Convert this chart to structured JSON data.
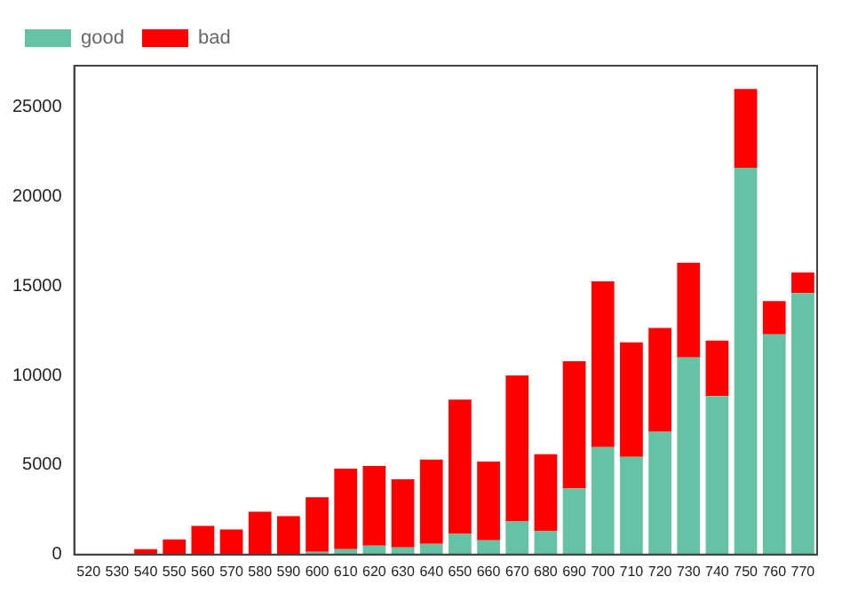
{
  "chart_data": {
    "type": "bar",
    "stacked": true,
    "categories": [
      "520",
      "530",
      "540",
      "550",
      "560",
      "570",
      "580",
      "590",
      "600",
      "610",
      "620",
      "630",
      "640",
      "650",
      "660",
      "670",
      "680",
      "690",
      "700",
      "710",
      "720",
      "730",
      "740",
      "750",
      "760",
      "770"
    ],
    "series": [
      {
        "name": "good",
        "color": "#66c2a5",
        "values": [
          0,
          0,
          0,
          0,
          0,
          null,
          null,
          null,
          150,
          300,
          500,
          400,
          600,
          1150,
          800,
          1850,
          1300,
          3700,
          6000,
          5450,
          6850,
          11000,
          8850,
          21600,
          12300,
          14600
        ]
      },
      {
        "name": "bad",
        "color": "#ff0000",
        "values": [
          0,
          0,
          300,
          850,
          1600,
          1400,
          2400,
          2150,
          3050,
          4500,
          4450,
          3800,
          4700,
          7500,
          4400,
          8150,
          4300,
          7100,
          9250,
          6400,
          5800,
          5300,
          3100,
          4400,
          1850,
          1150
        ]
      }
    ],
    "ylim": [
      0,
      27300
    ],
    "yticks": [
      0,
      5000,
      10000,
      15000,
      20000,
      25000
    ],
    "legend": "top left"
  }
}
